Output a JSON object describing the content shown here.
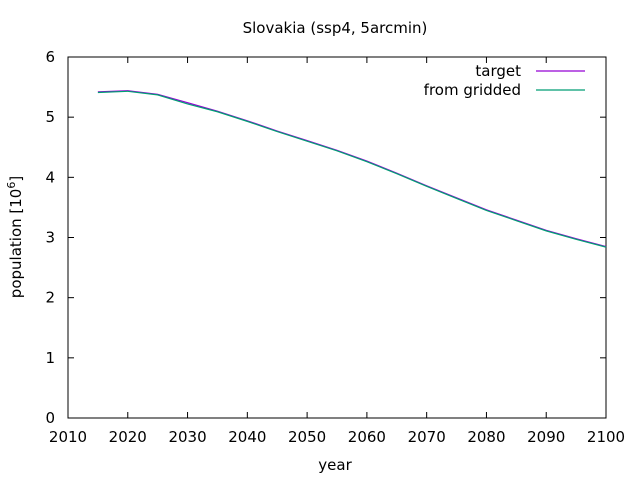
{
  "chart_data": {
    "type": "line",
    "title": "Slovakia (ssp4, 5arcmin)",
    "xlabel": "year",
    "ylabel_main": "population [10",
    "ylabel_exp": "6",
    "ylabel_end": "]",
    "xlim": [
      2010,
      2100
    ],
    "ylim": [
      0,
      6
    ],
    "xticks": [
      2010,
      2020,
      2030,
      2040,
      2050,
      2060,
      2070,
      2080,
      2090,
      2100
    ],
    "yticks": [
      0,
      1,
      2,
      3,
      4,
      5,
      6
    ],
    "grid": false,
    "legend_position": "top-right",
    "series": [
      {
        "name": "target",
        "color": "#9400d3",
        "x": [
          2015,
          2020,
          2025,
          2030,
          2035,
          2040,
          2045,
          2050,
          2055,
          2060,
          2065,
          2070,
          2075,
          2080,
          2085,
          2090,
          2095,
          2100
        ],
        "y": [
          5.42,
          5.44,
          5.38,
          5.24,
          5.1,
          4.94,
          4.77,
          4.61,
          4.45,
          4.27,
          4.07,
          3.86,
          3.66,
          3.46,
          3.29,
          3.12,
          2.98,
          2.85
        ]
      },
      {
        "name": "from gridded",
        "color": "#009e73",
        "x": [
          2015,
          2020,
          2025,
          2030,
          2035,
          2040,
          2045,
          2050,
          2055,
          2060,
          2065,
          2070,
          2075,
          2080,
          2085,
          2090,
          2095,
          2100
        ],
        "y": [
          5.41,
          5.43,
          5.37,
          5.22,
          5.09,
          4.93,
          4.76,
          4.6,
          4.44,
          4.26,
          4.06,
          3.85,
          3.65,
          3.45,
          3.28,
          3.11,
          2.97,
          2.84
        ]
      }
    ]
  }
}
